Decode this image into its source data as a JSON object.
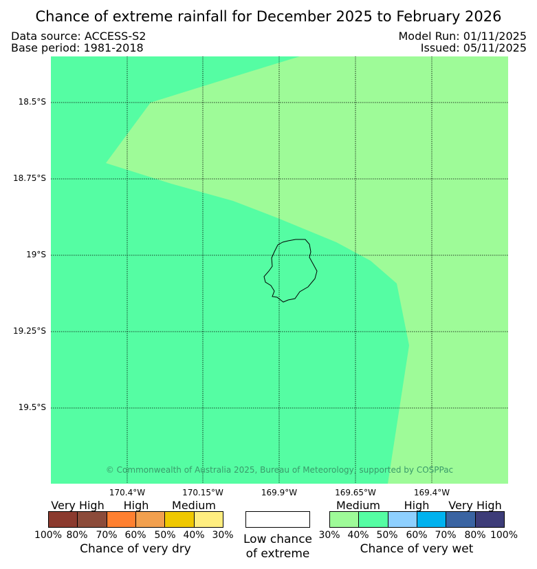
{
  "header": {
    "title": "Chance of extreme rainfall for December 2025 to February 2026",
    "data_source": "Data source: ACCESS-S2",
    "base_period": "Base period: 1981-2018",
    "model_run": "Model Run: 01/11/2025",
    "issued": "Issued: 05/11/2025"
  },
  "map": {
    "credit": "© Commonwealth of Australia 2025, Bureau of Meteorology, supported by COSPPac",
    "lat_labels": [
      "18.5°S",
      "18.75°S",
      "19°S",
      "19.25°S",
      "19.5°S"
    ],
    "lon_labels": [
      "170.4°W",
      "170.15°W",
      "169.9°W",
      "169.65°W",
      "169.4°W"
    ],
    "colors": {
      "background_medium_wet": "#9efb98",
      "band_wet_40_50": "#55fda3",
      "coastline": "#000000"
    }
  },
  "legend": {
    "dry": {
      "categories": [
        "Very High",
        "High",
        "Medium"
      ],
      "colors": [
        "#8b3a2e",
        "#8c4b3a",
        "#ff8030",
        "#f2a04e",
        "#f0c800",
        "#ffee80"
      ],
      "ticks": [
        "100%",
        "80%",
        "70%",
        "60%",
        "50%",
        "40%",
        "30%"
      ],
      "caption": "Chance of very dry"
    },
    "neutral": {
      "caption_line1": "Low chance",
      "caption_line2": "of extreme"
    },
    "wet": {
      "categories": [
        "Medium",
        "High",
        "Very High"
      ],
      "colors": [
        "#9efb98",
        "#55fda3",
        "#8ed0ff",
        "#00b2ef",
        "#3a64a2",
        "#3d3c78"
      ],
      "ticks": [
        "30%",
        "40%",
        "50%",
        "60%",
        "70%",
        "80%",
        "100%"
      ],
      "caption": "Chance of very wet"
    }
  }
}
